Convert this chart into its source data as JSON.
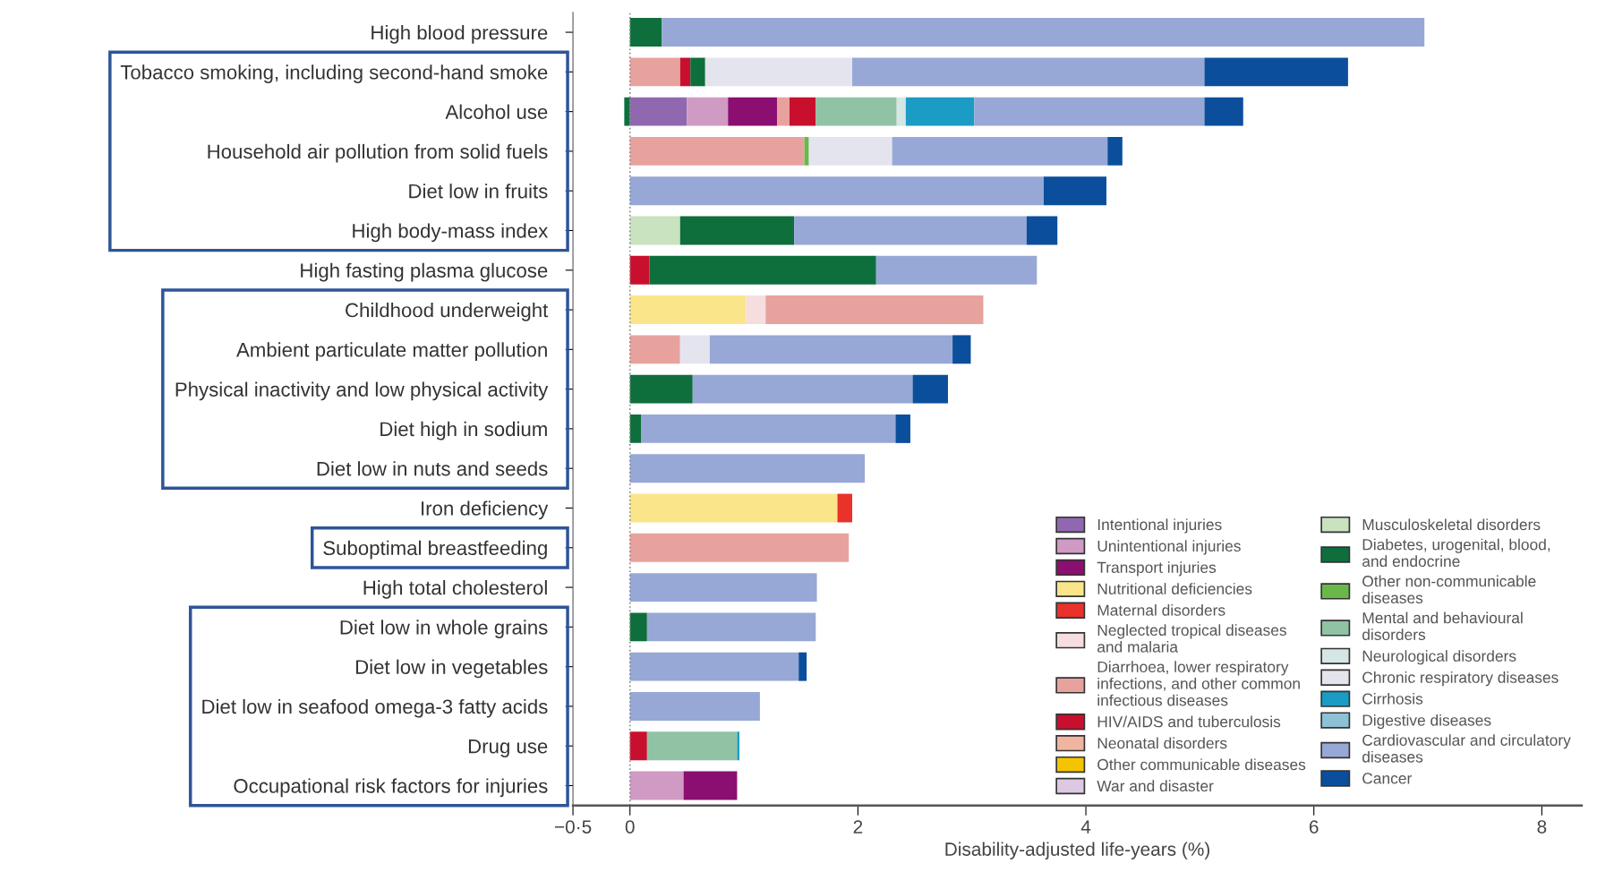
{
  "chart_data": {
    "type": "bar",
    "orientation": "horizontal",
    "stacked": true,
    "xlabel": "Disability-adjusted life-years (%)",
    "categories": [
      "High blood pressure",
      "Tobacco smoking, including second-hand smoke",
      "Alcohol use",
      "Household air pollution from solid fuels",
      "Diet low in fruits",
      "High body-mass index",
      "High fasting plasma glucose",
      "Childhood underweight",
      "Ambient particulate matter pollution",
      "Physical inactivity and low physical activity",
      "Diet high in sodium",
      "Diet low in nuts and seeds",
      "Iron deficiency",
      "Suboptimal breastfeeding",
      "High total cholesterol",
      "Diet low in whole grains",
      "Diet low in vegetables",
      "Diet low in seafood omega-3 fatty acids",
      "Drug use",
      "Occupational risk factors for injuries"
    ],
    "xlim": [
      -0.5,
      8.35
    ],
    "xticks": [
      {
        "value": -0.5,
        "label": "−0·5"
      },
      0,
      2,
      4,
      6,
      8
    ],
    "ref_lines": [
      {
        "axis": "x",
        "value": 0,
        "label": null,
        "color": "#888888",
        "line_style": "dotted"
      }
    ],
    "legend": "bottom right",
    "grid": false,
    "series": [
      {
        "name": "Intentional injuries",
        "color": "#9068b0",
        "values": [
          null,
          null,
          0.5,
          null,
          null,
          null,
          null,
          null,
          null,
          null,
          null,
          null,
          null,
          null,
          null,
          null,
          null,
          null,
          null,
          null
        ]
      },
      {
        "name": "Unintentional injuries",
        "color": "#cf9ac4",
        "values": [
          null,
          null,
          0.36,
          null,
          null,
          null,
          null,
          null,
          null,
          null,
          null,
          null,
          null,
          null,
          null,
          null,
          null,
          null,
          null,
          0.47
        ]
      },
      {
        "name": "Transport injuries",
        "color": "#8b0f70",
        "values": [
          null,
          null,
          0.43,
          null,
          null,
          null,
          null,
          null,
          null,
          null,
          null,
          null,
          null,
          null,
          null,
          null,
          null,
          null,
          null,
          0.47
        ]
      },
      {
        "name": "Nutritional deficiencies",
        "color": "#fbe58a",
        "values": [
          null,
          null,
          null,
          null,
          null,
          null,
          null,
          1.02,
          null,
          null,
          null,
          null,
          1.82,
          null,
          null,
          null,
          null,
          null,
          null,
          null
        ]
      },
      {
        "name": "Maternal disorders",
        "color": "#e8322a",
        "values": [
          null,
          null,
          null,
          null,
          null,
          null,
          null,
          null,
          null,
          null,
          null,
          null,
          0.13,
          null,
          null,
          null,
          null,
          null,
          null,
          null
        ]
      },
      {
        "name": "Neglected tropical diseases and malaria",
        "color": "#f5dde0",
        "values": [
          null,
          null,
          null,
          null,
          null,
          null,
          null,
          0.17,
          null,
          null,
          null,
          null,
          null,
          null,
          null,
          null,
          null,
          null,
          null,
          null
        ]
      },
      {
        "name": "Diarrhoea, lower respiratory infections, and other common infectious diseases",
        "color": "#e8a29e",
        "values": [
          null,
          0.44,
          0.11,
          1.53,
          null,
          null,
          null,
          1.91,
          0.44,
          null,
          null,
          null,
          null,
          1.92,
          null,
          null,
          null,
          null,
          null,
          null
        ]
      },
      {
        "name": "HIV/AIDS and tuberculosis",
        "color": "#c8102e",
        "values": [
          null,
          0.09,
          0.23,
          null,
          null,
          null,
          0.17,
          null,
          null,
          null,
          null,
          null,
          null,
          null,
          null,
          null,
          null,
          null,
          0.15,
          null
        ]
      },
      {
        "name": "Neonatal disorders",
        "color": "#f0b5a0",
        "values": [
          null,
          null,
          null,
          null,
          null,
          null,
          null,
          null,
          null,
          null,
          null,
          null,
          null,
          null,
          null,
          null,
          null,
          null,
          null,
          null
        ]
      },
      {
        "name": "Other communicable diseases",
        "color": "#f5c400",
        "values": [
          null,
          null,
          null,
          null,
          null,
          null,
          null,
          null,
          null,
          null,
          null,
          null,
          null,
          null,
          null,
          null,
          null,
          null,
          null,
          null
        ]
      },
      {
        "name": "War and disaster",
        "color": "#dcc8e0",
        "values": [
          null,
          null,
          null,
          null,
          null,
          null,
          null,
          null,
          null,
          null,
          null,
          null,
          null,
          null,
          null,
          null,
          null,
          null,
          null,
          null
        ]
      },
      {
        "name": "Musculoskeletal disorders",
        "color": "#c9e2c0",
        "values": [
          null,
          null,
          null,
          null,
          null,
          0.44,
          null,
          null,
          null,
          null,
          null,
          null,
          null,
          null,
          null,
          null,
          null,
          null,
          null,
          null
        ]
      },
      {
        "name": "Diabetes, urogenital, blood, and endocrine",
        "color": "#0e6e3c",
        "values": [
          0.28,
          0.13,
          -0.05,
          null,
          null,
          1.0,
          1.99,
          null,
          null,
          0.55,
          0.1,
          null,
          null,
          null,
          null,
          0.15,
          null,
          null,
          null,
          null
        ]
      },
      {
        "name": "Other non-communicable diseases",
        "color": "#6ab84a",
        "values": [
          null,
          null,
          null,
          0.04,
          null,
          null,
          null,
          null,
          null,
          null,
          null,
          null,
          null,
          null,
          null,
          null,
          null,
          null,
          null,
          null
        ]
      },
      {
        "name": "Mental and behavioural disorders",
        "color": "#8fc3a4",
        "values": [
          null,
          null,
          0.71,
          null,
          null,
          null,
          null,
          null,
          null,
          null,
          null,
          null,
          null,
          null,
          null,
          null,
          null,
          null,
          0.79,
          null
        ]
      },
      {
        "name": "Neurological disorders",
        "color": "#d4e6e6",
        "values": [
          null,
          null,
          0.08,
          null,
          null,
          null,
          null,
          null,
          null,
          null,
          null,
          null,
          null,
          null,
          null,
          null,
          null,
          null,
          null,
          null
        ]
      },
      {
        "name": "Chronic respiratory diseases",
        "color": "#e4e4ef",
        "values": [
          null,
          1.29,
          null,
          0.73,
          null,
          null,
          null,
          null,
          0.26,
          null,
          null,
          null,
          null,
          null,
          null,
          null,
          null,
          null,
          null,
          null
        ]
      },
      {
        "name": "Cirrhosis",
        "color": "#1a9cc4",
        "values": [
          null,
          null,
          0.6,
          null,
          null,
          null,
          null,
          null,
          null,
          null,
          null,
          null,
          null,
          null,
          null,
          null,
          null,
          null,
          0.02,
          null
        ]
      },
      {
        "name": "Digestive diseases",
        "color": "#8ec0d6",
        "values": [
          null,
          null,
          null,
          null,
          null,
          null,
          null,
          null,
          null,
          null,
          null,
          null,
          null,
          null,
          null,
          null,
          null,
          null,
          null,
          null
        ]
      },
      {
        "name": "Cardiovascular and circulatory diseases",
        "color": "#97a8d6",
        "values": [
          6.69,
          3.09,
          2.02,
          1.89,
          3.63,
          2.04,
          1.41,
          null,
          2.13,
          1.93,
          2.23,
          2.06,
          null,
          null,
          1.64,
          1.48,
          1.48,
          1.14,
          null,
          null
        ]
      },
      {
        "name": "Cancer",
        "color": "#0b4f9c",
        "values": [
          null,
          1.26,
          0.34,
          0.13,
          0.55,
          0.27,
          null,
          null,
          0.16,
          0.31,
          0.13,
          null,
          null,
          null,
          null,
          null,
          0.07,
          null,
          null,
          null
        ]
      }
    ]
  }
}
